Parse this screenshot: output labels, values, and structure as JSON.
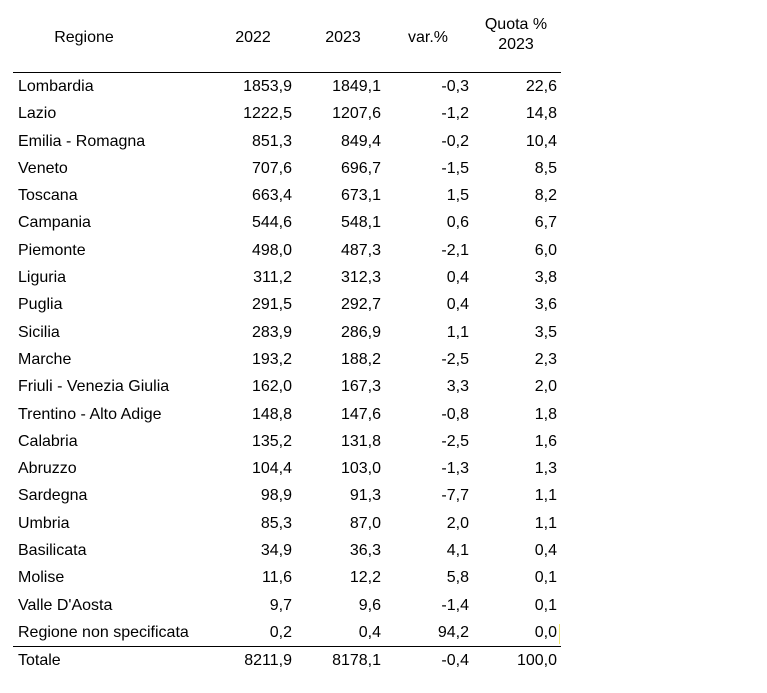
{
  "header": {
    "region": "Regione",
    "y2022": "2022",
    "y2023": "2023",
    "var": "var.%",
    "quota_line1": "Quota %",
    "quota_line2": "2023"
  },
  "rows": [
    {
      "region": "Lombardia",
      "y2022": "1853,9",
      "y2023": "1849,1",
      "var": "-0,3",
      "quota": "22,6"
    },
    {
      "region": "Lazio",
      "y2022": "1222,5",
      "y2023": "1207,6",
      "var": "-1,2",
      "quota": "14,8"
    },
    {
      "region": "Emilia - Romagna",
      "y2022": "851,3",
      "y2023": "849,4",
      "var": "-0,2",
      "quota": "10,4"
    },
    {
      "region": "Veneto",
      "y2022": "707,6",
      "y2023": "696,7",
      "var": "-1,5",
      "quota": "8,5"
    },
    {
      "region": "Toscana",
      "y2022": "663,4",
      "y2023": "673,1",
      "var": "1,5",
      "quota": "8,2"
    },
    {
      "region": "Campania",
      "y2022": "544,6",
      "y2023": "548,1",
      "var": "0,6",
      "quota": "6,7"
    },
    {
      "region": "Piemonte",
      "y2022": "498,0",
      "y2023": "487,3",
      "var": "-2,1",
      "quota": "6,0"
    },
    {
      "region": "Liguria",
      "y2022": "311,2",
      "y2023": "312,3",
      "var": "0,4",
      "quota": "3,8"
    },
    {
      "region": "Puglia",
      "y2022": "291,5",
      "y2023": "292,7",
      "var": "0,4",
      "quota": "3,6"
    },
    {
      "region": "Sicilia",
      "y2022": "283,9",
      "y2023": "286,9",
      "var": "1,1",
      "quota": "3,5"
    },
    {
      "region": "Marche",
      "y2022": "193,2",
      "y2023": "188,2",
      "var": "-2,5",
      "quota": "2,3"
    },
    {
      "region": "Friuli - Venezia Giulia",
      "y2022": "162,0",
      "y2023": "167,3",
      "var": "3,3",
      "quota": "2,0"
    },
    {
      "region": "Trentino - Alto Adige",
      "y2022": "148,8",
      "y2023": "147,6",
      "var": "-0,8",
      "quota": "1,8"
    },
    {
      "region": "Calabria",
      "y2022": "135,2",
      "y2023": "131,8",
      "var": "-2,5",
      "quota": "1,6"
    },
    {
      "region": "Abruzzo",
      "y2022": "104,4",
      "y2023": "103,0",
      "var": "-1,3",
      "quota": "1,3"
    },
    {
      "region": "Sardegna",
      "y2022": "98,9",
      "y2023": "91,3",
      "var": "-7,7",
      "quota": "1,1"
    },
    {
      "region": "Umbria",
      "y2022": "85,3",
      "y2023": "87,0",
      "var": "2,0",
      "quota": "1,1"
    },
    {
      "region": "Basilicata",
      "y2022": "34,9",
      "y2023": "36,3",
      "var": "4,1",
      "quota": "0,4"
    },
    {
      "region": "Molise",
      "y2022": "11,6",
      "y2023": "12,2",
      "var": "5,8",
      "quota": "0,1"
    },
    {
      "region": "Valle D'Aosta",
      "y2022": "9,7",
      "y2023": "9,6",
      "var": "-1,4",
      "quota": "0,1"
    },
    {
      "region": "Regione non specificata",
      "y2022": "0,2",
      "y2023": "0,4",
      "var": "94,2",
      "quota": "0,0"
    }
  ],
  "total": {
    "region": "Totale",
    "y2022": "8211,9",
    "y2023": "8178,1",
    "var": "-0,4",
    "quota": "100,0"
  }
}
